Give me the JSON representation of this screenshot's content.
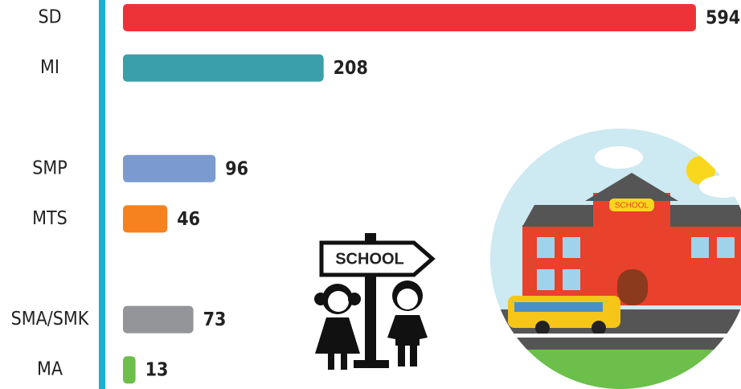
{
  "chart_data": {
    "type": "hbar",
    "categories": [
      "SD",
      "MI",
      null,
      "SMP",
      "MTS",
      null,
      "SMA/SMK",
      "MA"
    ],
    "values": [
      594,
      208,
      null,
      96,
      46,
      null,
      73,
      13
    ],
    "colors": [
      "#ee3338",
      "#3a9fa8",
      null,
      "#7b9bd0",
      "#f5821f",
      null,
      "#939598",
      "#6cbf4a"
    ]
  },
  "illustration": {
    "sign": "SCHOOL",
    "building": "SCHOOL"
  }
}
